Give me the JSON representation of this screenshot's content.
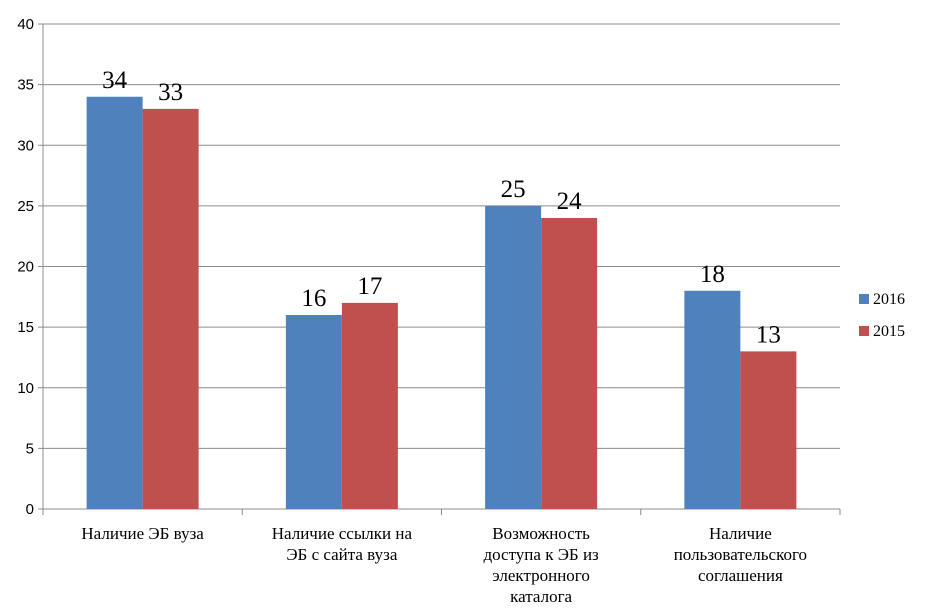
{
  "chart_data": {
    "type": "bar",
    "title": "",
    "xlabel": "",
    "ylabel": "",
    "categories": [
      "Наличие ЭБ вуза",
      "Наличие ссылки на ЭБ с сайта вуза",
      "Возможность доступа к ЭБ из электронного каталога",
      "Наличие пользовательского соглашения"
    ],
    "category_lines": [
      [
        "Наличие ЭБ вуза"
      ],
      [
        "Наличие ссылки на",
        "ЭБ с сайта вуза"
      ],
      [
        "Возможность",
        "доступа к ЭБ из",
        "электронного",
        "каталога"
      ],
      [
        "Наличие",
        "пользовательского",
        "соглашения"
      ]
    ],
    "series": [
      {
        "name": "2016",
        "color": "#4f81bd",
        "values": [
          34,
          16,
          25,
          18
        ]
      },
      {
        "name": "2015",
        "color": "#c0504d",
        "values": [
          33,
          17,
          24,
          13
        ]
      }
    ],
    "ylim": [
      0,
      40
    ],
    "yticks": [
      0,
      5,
      10,
      15,
      20,
      25,
      30,
      35,
      40
    ],
    "grid": true,
    "legend": "right",
    "data_labels": true
  }
}
